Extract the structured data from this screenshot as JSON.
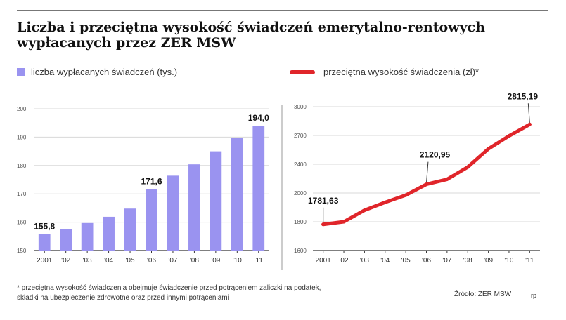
{
  "title": "Liczba i przeciętna wysokość świadczeń emerytalno-rentowych wypłacanych przez ZER MSW",
  "footnote_line1": "* przeciętna wysokość świadczenia obejmuje świadczenie przed potrąceniem zaliczki na podatek,",
  "footnote_line2": "składki na ubezpieczenie zdrowotne oraz przed innymi potrąceniami",
  "source": "Źródło: ZER MSW",
  "page_number": "rp",
  "colors": {
    "bar": "#9a93f0",
    "line": "#e0252a",
    "grid": "#d8d8d8",
    "axis": "#333333"
  },
  "chart_data": [
    {
      "type": "bar",
      "legend": "liczba wypłacanych świadczeń (tys.)",
      "categories": [
        "2001",
        "'02",
        "'03",
        "'04",
        "'05",
        "'06",
        "'07",
        "'08",
        "'09",
        "'10",
        "'11"
      ],
      "values": [
        155.8,
        157.6,
        159.7,
        161.9,
        164.8,
        171.6,
        176.4,
        180.4,
        185.0,
        189.8,
        194.0
      ],
      "data_labels": [
        {
          "index": 0,
          "text": "155,8"
        },
        {
          "index": 5,
          "text": "171,6"
        },
        {
          "index": 10,
          "text": "194,0"
        }
      ],
      "yticks": [
        150,
        160,
        170,
        180,
        190,
        200
      ],
      "ylim": [
        150,
        200
      ],
      "grid": true
    },
    {
      "type": "line",
      "legend": "przeciętna wysokość świadczenia (zł)*",
      "categories": [
        "2001",
        "'02",
        "'03",
        "'04",
        "'05",
        "'06",
        "'07",
        "'08",
        "'09",
        "'10",
        "'11"
      ],
      "values": [
        1781.63,
        1800,
        1880,
        1935,
        1985,
        2120.95,
        2190,
        2360,
        2560,
        2695,
        2815.19
      ],
      "data_labels": [
        {
          "index": 0,
          "text": "1781,63"
        },
        {
          "index": 5,
          "text": "2120,95"
        },
        {
          "index": 10,
          "text": "2815,19"
        }
      ],
      "yticks": [
        1600,
        1800,
        2000,
        2400,
        2700,
        3000
      ],
      "ylim": [
        1600,
        3000
      ],
      "grid": true
    }
  ]
}
